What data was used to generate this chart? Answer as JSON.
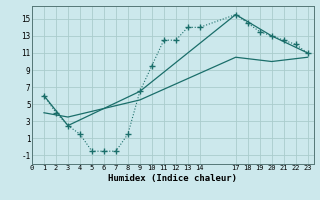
{
  "xlabel": "Humidex (Indice chaleur)",
  "bg_color": "#cce8ec",
  "grid_color": "#aacccc",
  "line_color": "#1a6e6a",
  "xlim": [
    0,
    23.5
  ],
  "ylim": [
    -2,
    16.5
  ],
  "xticks": [
    0,
    1,
    2,
    3,
    4,
    5,
    6,
    7,
    8,
    9,
    10,
    11,
    12,
    13,
    14,
    17,
    18,
    19,
    20,
    21,
    22,
    23
  ],
  "yticks": [
    -1,
    1,
    3,
    5,
    7,
    9,
    11,
    13,
    15
  ],
  "curve_x": [
    1,
    2,
    3,
    4,
    5,
    6,
    7,
    8,
    9,
    10,
    11,
    12,
    13,
    14,
    17,
    18,
    19,
    20,
    21,
    22,
    23
  ],
  "curve_y": [
    6,
    4,
    2.5,
    1.5,
    -0.5,
    -0.5,
    -0.5,
    1.5,
    6.5,
    9.5,
    12.5,
    12.5,
    14.0,
    14.0,
    15.5,
    14.5,
    13.5,
    13.0,
    12.5,
    12.0,
    11.0
  ],
  "line1_x": [
    1,
    3,
    9,
    17,
    20,
    23
  ],
  "line1_y": [
    6,
    2.5,
    6.5,
    15.5,
    13.0,
    11.0
  ],
  "line2_x": [
    1,
    3,
    9,
    17,
    20,
    23
  ],
  "line2_y": [
    4,
    3.5,
    5.5,
    10.5,
    10.0,
    10.5
  ]
}
